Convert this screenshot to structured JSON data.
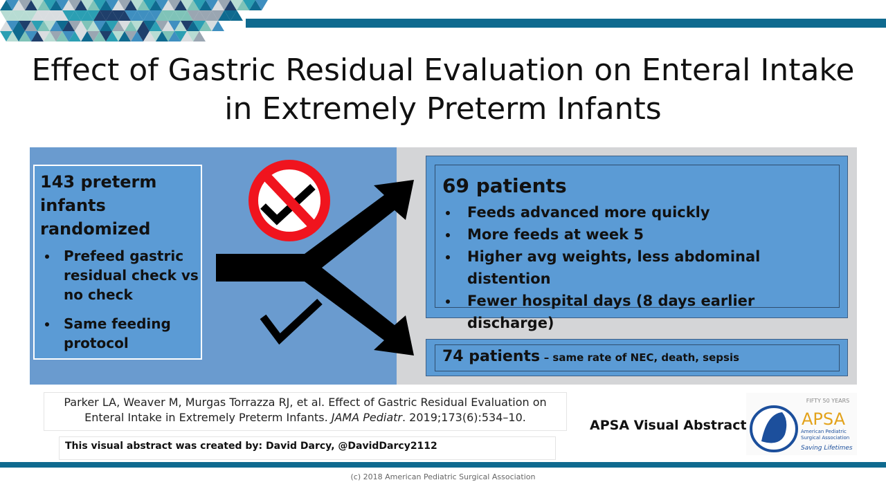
{
  "title": {
    "lines": [
      "Effect of Gastric Residual Evaluation on Enteral Intake",
      "in Extremely Preterm Infants"
    ]
  },
  "enrollment": {
    "heading": "143 preterm infants randomized",
    "bullets": [
      "Prefeed gastric residual check vs no check",
      "Same feeding protocol"
    ]
  },
  "arm_a": {
    "heading": "69 patients",
    "bullets": [
      "Feeds advanced more quickly",
      "More feeds at week 5",
      "Higher avg weights, less abdominal distention",
      "Fewer hospital days (8 days earlier discharge)"
    ]
  },
  "arm_b": {
    "heading": "74 patients",
    "detail": "– same rate of NEC, death, sepsis"
  },
  "citation": {
    "text": "Parker LA, Weaver M, Murgas Torrazza RJ, et al. Effect of Gastric Residual Evaluation on Enteral Intake in Extremely Preterm Infants.",
    "journal": "JAMA Pediatr",
    "details": ". 2019;173(6):534–10."
  },
  "credit": "This visual abstract was created by: David Darcy, @DavidDarcy2112",
  "series_name": "APSA Visual Abstracts",
  "logo": {
    "anniversary": "FIFTY 50 YEARS",
    "name": "APSA",
    "org_line1": "American Pediatric",
    "org_line2": "Surgical Association",
    "tagline": "Saving Lifetimes"
  },
  "footer": "(c) 2018 American Pediatric Surgical Association"
}
